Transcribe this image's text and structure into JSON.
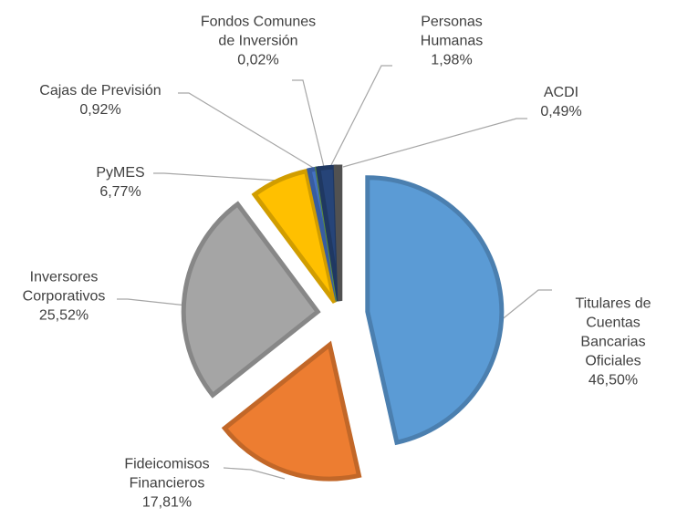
{
  "chart_data": {
    "type": "pie",
    "categories": [
      "Titulares de\nCuentas Bancarias\nOficiales",
      "Fideicomisos\nFinancieros",
      "Inversores\nCorporativos",
      "PyMES",
      "Cajas de Previsión",
      "Fondos Comunes\nde Inversión",
      "Personas\nHumanas",
      "ACDI"
    ],
    "values": [
      46.5,
      17.81,
      25.52,
      6.77,
      0.92,
      0.02,
      1.98,
      0.49
    ],
    "value_labels": [
      "46,50%",
      "17,81%",
      "25,52%",
      "6,77%",
      "0,92%",
      "0,02%",
      "1,98%",
      "0,49%"
    ],
    "colors": [
      "#5b9bd5",
      "#ed7d31",
      "#a5a5a5",
      "#ffc000",
      "#4472c4",
      "#70ad47",
      "#264478",
      "#636363"
    ]
  }
}
